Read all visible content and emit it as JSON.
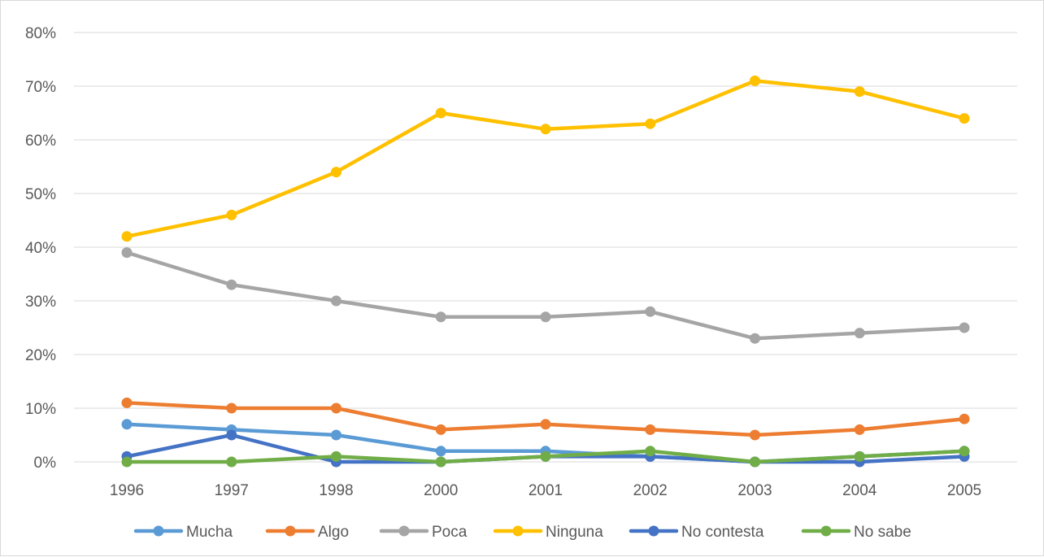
{
  "chart_data": {
    "type": "line",
    "title": "",
    "xlabel": "",
    "ylabel": "",
    "categories": [
      "1996",
      "1997",
      "1998",
      "2000",
      "2001",
      "2002",
      "2003",
      "2004",
      "2005"
    ],
    "yticks": [
      "0%",
      "10%",
      "20%",
      "30%",
      "40%",
      "50%",
      "60%",
      "70%",
      "80%"
    ],
    "ylim": [
      0,
      80
    ],
    "unit": "%",
    "grid": true,
    "legend_position": "bottom",
    "series": [
      {
        "name": "Mucha",
        "color": "#5B9BD5",
        "values": [
          7,
          6,
          5,
          2,
          2,
          1,
          0,
          1,
          2
        ]
      },
      {
        "name": "Algo",
        "color": "#ED7D31",
        "values": [
          11,
          10,
          10,
          6,
          7,
          6,
          5,
          6,
          8
        ]
      },
      {
        "name": "Poca",
        "color": "#A5A5A5",
        "values": [
          39,
          33,
          30,
          27,
          27,
          28,
          23,
          24,
          25
        ]
      },
      {
        "name": "Ninguna",
        "color": "#FFC000",
        "values": [
          42,
          46,
          54,
          65,
          62,
          63,
          71,
          69,
          64
        ]
      },
      {
        "name": "No contesta",
        "color": "#4472C4",
        "values": [
          1,
          5,
          0,
          0,
          1,
          1,
          0,
          0,
          1
        ]
      },
      {
        "name": "No sabe",
        "color": "#70AD47",
        "values": [
          0,
          0,
          1,
          0,
          1,
          2,
          0,
          1,
          2
        ]
      }
    ]
  }
}
